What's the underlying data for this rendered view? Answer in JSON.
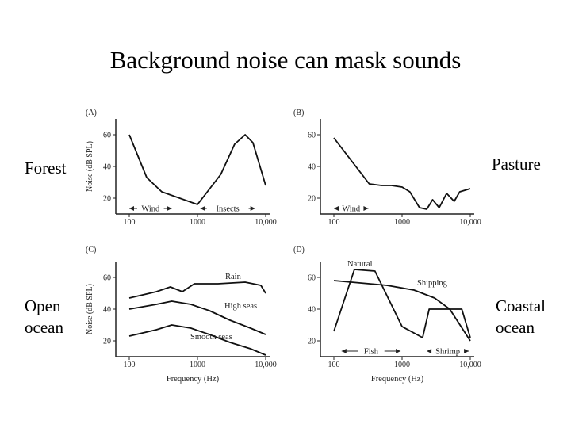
{
  "slide": {
    "title": "Background noise can mask sounds",
    "labels": {
      "forest": "Forest",
      "pasture": "Pasture",
      "open_ocean": "Open ocean",
      "coastal_ocean": "Coastal ocean"
    }
  },
  "chart_data": [
    {
      "type": "line",
      "panel": "(A)",
      "xscale": "log",
      "xlim": [
        100,
        10000
      ],
      "ylim": [
        10,
        70
      ],
      "xticks": [
        "100",
        "1000",
        "10,000"
      ],
      "yticks": [
        "20",
        "40",
        "60"
      ],
      "ylabel": "Noise (dB SPL)",
      "xlabel": "",
      "series": [
        {
          "x": [
            100,
            180,
            300,
            1000,
            2200,
            3500,
            5000,
            6500,
            10000
          ],
          "y": [
            60,
            33,
            24,
            16,
            35,
            54,
            60,
            55,
            28
          ]
        }
      ],
      "annotations": [
        {
          "label": "Wind",
          "range": [
            100,
            420
          ],
          "y": 16
        },
        {
          "label": "Insects",
          "range": [
            1100,
            7000
          ],
          "y": 16
        }
      ]
    },
    {
      "type": "line",
      "panel": "(B)",
      "xscale": "log",
      "xlim": [
        100,
        10000
      ],
      "ylim": [
        10,
        70
      ],
      "xticks": [
        "100",
        "1000",
        "10,000"
      ],
      "yticks": [
        "20",
        "40",
        "60"
      ],
      "ylabel": "",
      "xlabel": "",
      "series": [
        {
          "x": [
            100,
            330,
            500,
            700,
            1000,
            1300,
            1800,
            2300,
            2800,
            3500,
            4500,
            5800,
            7000,
            10000
          ],
          "y": [
            58,
            29,
            28,
            28,
            27,
            24,
            14,
            13,
            19,
            14,
            23,
            18,
            24,
            26
          ]
        }
      ],
      "annotations": [
        {
          "label": "Wind",
          "range": [
            100,
            320
          ],
          "y": 16
        }
      ]
    },
    {
      "type": "line",
      "panel": "(C)",
      "xscale": "log",
      "xlim": [
        100,
        10000
      ],
      "ylim": [
        10,
        70
      ],
      "xticks": [
        "100",
        "1000",
        "10,000"
      ],
      "yticks": [
        "20",
        "40",
        "60"
      ],
      "ylabel": "Noise (dB SPL)",
      "xlabel": "Frequency (Hz)",
      "series": [
        {
          "name": "Rain",
          "x": [
            100,
            250,
            400,
            600,
            900,
            2000,
            5000,
            8500,
            10000
          ],
          "y": [
            47,
            51,
            54,
            51,
            56,
            56,
            57,
            55,
            50
          ]
        },
        {
          "name": "High seas",
          "x": [
            100,
            250,
            420,
            800,
            1500,
            3000,
            6000,
            10000
          ],
          "y": [
            40,
            43,
            45,
            43,
            39,
            33,
            28,
            24
          ]
        },
        {
          "name": "Smooth seas",
          "x": [
            100,
            250,
            420,
            800,
            1500,
            3000,
            6000,
            10000
          ],
          "y": [
            23,
            27,
            30,
            28,
            24,
            19,
            15,
            11
          ]
        }
      ],
      "annotations": []
    },
    {
      "type": "line",
      "panel": "(D)",
      "xscale": "log",
      "xlim": [
        100,
        10000
      ],
      "ylim": [
        10,
        70
      ],
      "xticks": [
        "100",
        "1000",
        "10,000"
      ],
      "yticks": [
        "20",
        "40",
        "60"
      ],
      "ylabel": "",
      "xlabel": "Frequency (Hz)",
      "series": [
        {
          "name": "Natural",
          "x": [
            100,
            200,
            400,
            1000,
            2000,
            2500,
            3500,
            5000,
            7500,
            10000
          ],
          "y": [
            26,
            65,
            64,
            29,
            22,
            40,
            40,
            40,
            40,
            22
          ]
        },
        {
          "name": "Shipping",
          "x": [
            100,
            600,
            1500,
            3000,
            5000,
            10000
          ],
          "y": [
            58,
            55,
            52,
            47,
            40,
            20
          ]
        }
      ],
      "annotations": [
        {
          "label": "Fish",
          "range": [
            130,
            950
          ],
          "y": 16
        },
        {
          "label": "Shrimp",
          "range": [
            2300,
            9500
          ],
          "y": 16
        }
      ]
    }
  ]
}
